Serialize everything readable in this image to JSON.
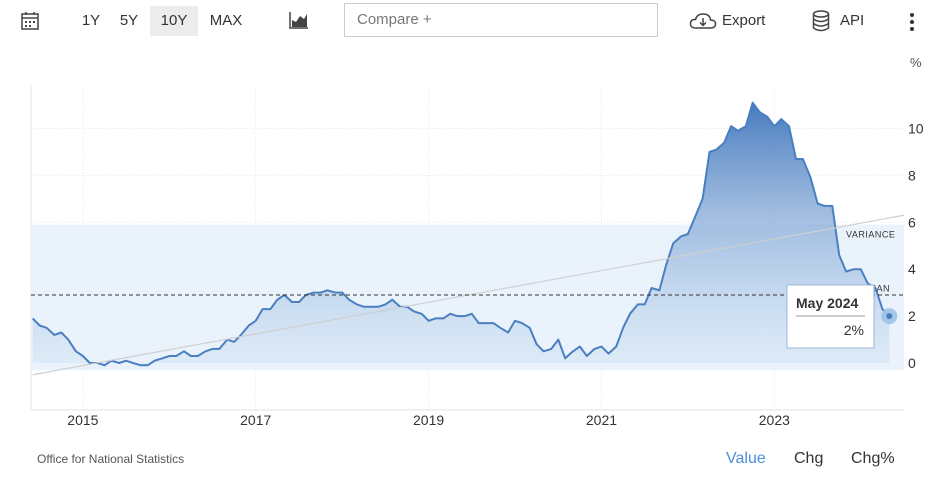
{
  "toolbar": {
    "ranges": [
      "1Y",
      "5Y",
      "10Y",
      "MAX"
    ],
    "active_range": "10Y",
    "compare_placeholder": "Compare +",
    "export_label": "Export",
    "api_label": "API"
  },
  "footer": {
    "source": "Office for National Statistics",
    "modes": [
      "Value",
      "Chg",
      "Chg%"
    ],
    "active_mode": "Value"
  },
  "chart_data": {
    "type": "area",
    "unit": "%",
    "x_ticks": [
      "2015",
      "2017",
      "2019",
      "2021",
      "2023"
    ],
    "y_ticks": [
      "0",
      "2",
      "4",
      "6",
      "8",
      "10"
    ],
    "ylim": [
      -2,
      11.5
    ],
    "xlim": [
      2014.4,
      2024.5
    ],
    "grid": true,
    "series": [
      {
        "x": [
          2014.42,
          2014.5,
          2014.58,
          2014.67,
          2014.75,
          2014.83,
          2014.92,
          2015.0,
          2015.08,
          2015.17,
          2015.25,
          2015.33,
          2015.42,
          2015.5,
          2015.58,
          2015.67,
          2015.75,
          2015.83,
          2015.92,
          2016.0,
          2016.08,
          2016.17,
          2016.25,
          2016.33,
          2016.42,
          2016.5,
          2016.58,
          2016.67,
          2016.75,
          2016.83,
          2016.92,
          2017.0,
          2017.08,
          2017.17,
          2017.25,
          2017.33,
          2017.42,
          2017.5,
          2017.58,
          2017.67,
          2017.75,
          2017.83,
          2017.92,
          2018.0,
          2018.08,
          2018.17,
          2018.25,
          2018.33,
          2018.42,
          2018.5,
          2018.58,
          2018.67,
          2018.75,
          2018.83,
          2018.92,
          2019.0,
          2019.08,
          2019.17,
          2019.25,
          2019.33,
          2019.42,
          2019.5,
          2019.58,
          2019.67,
          2019.75,
          2019.83,
          2019.92,
          2020.0,
          2020.08,
          2020.17,
          2020.25,
          2020.33,
          2020.42,
          2020.5,
          2020.58,
          2020.67,
          2020.75,
          2020.83,
          2020.92,
          2021.0,
          2021.08,
          2021.17,
          2021.25,
          2021.33,
          2021.42,
          2021.5,
          2021.58,
          2021.67,
          2021.75,
          2021.83,
          2021.92,
          2022.0,
          2022.08,
          2022.17,
          2022.25,
          2022.33,
          2022.42,
          2022.5,
          2022.58,
          2022.67,
          2022.75,
          2022.83,
          2022.92,
          2023.0,
          2023.08,
          2023.17,
          2023.25,
          2023.33,
          2023.42,
          2023.5,
          2023.58,
          2023.67,
          2023.75,
          2023.83,
          2023.92,
          2024.0,
          2024.08,
          2024.17,
          2024.25,
          2024.33
        ],
        "values": [
          1.9,
          1.6,
          1.5,
          1.2,
          1.3,
          1.0,
          0.5,
          0.3,
          0.0,
          0.0,
          -0.1,
          0.1,
          0.0,
          0.1,
          0.0,
          -0.1,
          -0.1,
          0.1,
          0.2,
          0.3,
          0.3,
          0.5,
          0.3,
          0.3,
          0.5,
          0.6,
          0.6,
          1.0,
          0.9,
          1.2,
          1.6,
          1.8,
          2.3,
          2.3,
          2.7,
          2.9,
          2.6,
          2.6,
          2.9,
          3.0,
          3.0,
          3.1,
          3.0,
          3.0,
          2.7,
          2.5,
          2.4,
          2.4,
          2.4,
          2.5,
          2.7,
          2.4,
          2.4,
          2.2,
          2.1,
          1.8,
          1.9,
          1.9,
          2.1,
          2.0,
          2.0,
          2.1,
          1.7,
          1.7,
          1.7,
          1.5,
          1.3,
          1.8,
          1.7,
          1.5,
          0.8,
          0.5,
          0.6,
          1.0,
          0.2,
          0.5,
          0.7,
          0.3,
          0.6,
          0.7,
          0.4,
          0.7,
          1.5,
          2.1,
          2.5,
          2.5,
          3.2,
          3.1,
          4.2,
          5.1,
          5.4,
          5.5,
          6.2,
          7.0,
          9.0,
          9.1,
          9.4,
          10.1,
          9.9,
          10.1,
          11.1,
          10.7,
          10.5,
          10.1,
          10.4,
          10.1,
          8.7,
          8.7,
          7.9,
          6.8,
          6.7,
          6.7,
          4.6,
          3.9,
          4.0,
          4.0,
          3.4,
          3.2,
          2.3,
          2.0
        ]
      }
    ],
    "mean": 2.9,
    "variance_band": [
      -0.3,
      5.9
    ],
    "trend": [
      [
        2014.42,
        -0.5
      ],
      [
        2024.5,
        6.3
      ]
    ],
    "annotations": [
      "VARIANCE",
      "MEAN"
    ],
    "tooltip": {
      "date": "May 2024",
      "value": "2%"
    }
  }
}
